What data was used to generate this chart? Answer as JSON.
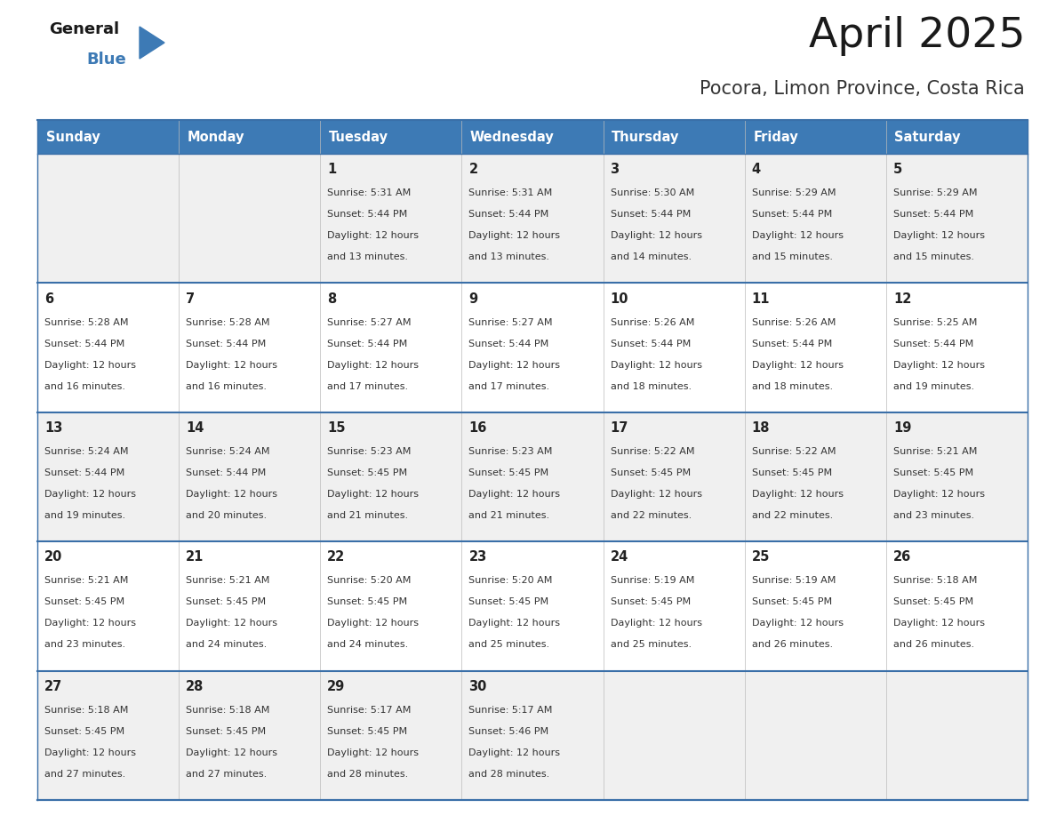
{
  "title": "April 2025",
  "subtitle": "Pocora, Limon Province, Costa Rica",
  "days_of_week": [
    "Sunday",
    "Monday",
    "Tuesday",
    "Wednesday",
    "Thursday",
    "Friday",
    "Saturday"
  ],
  "header_bg": "#3d7ab5",
  "header_text": "#ffffff",
  "row_bg_even": "#f0f0f0",
  "row_bg_odd": "#ffffff",
  "row_border": "#3a6fa8",
  "text_color": "#333333",
  "day_num_color": "#222222",
  "background": "#ffffff",
  "calendar_data": [
    [
      {
        "day": "",
        "sunrise": "",
        "sunset": "",
        "daylight": ""
      },
      {
        "day": "",
        "sunrise": "",
        "sunset": "",
        "daylight": ""
      },
      {
        "day": "1",
        "sunrise": "5:31 AM",
        "sunset": "5:44 PM",
        "daylight": "13 minutes."
      },
      {
        "day": "2",
        "sunrise": "5:31 AM",
        "sunset": "5:44 PM",
        "daylight": "13 minutes."
      },
      {
        "day": "3",
        "sunrise": "5:30 AM",
        "sunset": "5:44 PM",
        "daylight": "14 minutes."
      },
      {
        "day": "4",
        "sunrise": "5:29 AM",
        "sunset": "5:44 PM",
        "daylight": "15 minutes."
      },
      {
        "day": "5",
        "sunrise": "5:29 AM",
        "sunset": "5:44 PM",
        "daylight": "15 minutes."
      }
    ],
    [
      {
        "day": "6",
        "sunrise": "5:28 AM",
        "sunset": "5:44 PM",
        "daylight": "16 minutes."
      },
      {
        "day": "7",
        "sunrise": "5:28 AM",
        "sunset": "5:44 PM",
        "daylight": "16 minutes."
      },
      {
        "day": "8",
        "sunrise": "5:27 AM",
        "sunset": "5:44 PM",
        "daylight": "17 minutes."
      },
      {
        "day": "9",
        "sunrise": "5:27 AM",
        "sunset": "5:44 PM",
        "daylight": "17 minutes."
      },
      {
        "day": "10",
        "sunrise": "5:26 AM",
        "sunset": "5:44 PM",
        "daylight": "18 minutes."
      },
      {
        "day": "11",
        "sunrise": "5:26 AM",
        "sunset": "5:44 PM",
        "daylight": "18 minutes."
      },
      {
        "day": "12",
        "sunrise": "5:25 AM",
        "sunset": "5:44 PM",
        "daylight": "19 minutes."
      }
    ],
    [
      {
        "day": "13",
        "sunrise": "5:24 AM",
        "sunset": "5:44 PM",
        "daylight": "19 minutes."
      },
      {
        "day": "14",
        "sunrise": "5:24 AM",
        "sunset": "5:44 PM",
        "daylight": "20 minutes."
      },
      {
        "day": "15",
        "sunrise": "5:23 AM",
        "sunset": "5:45 PM",
        "daylight": "21 minutes."
      },
      {
        "day": "16",
        "sunrise": "5:23 AM",
        "sunset": "5:45 PM",
        "daylight": "21 minutes."
      },
      {
        "day": "17",
        "sunrise": "5:22 AM",
        "sunset": "5:45 PM",
        "daylight": "22 minutes."
      },
      {
        "day": "18",
        "sunrise": "5:22 AM",
        "sunset": "5:45 PM",
        "daylight": "22 minutes."
      },
      {
        "day": "19",
        "sunrise": "5:21 AM",
        "sunset": "5:45 PM",
        "daylight": "23 minutes."
      }
    ],
    [
      {
        "day": "20",
        "sunrise": "5:21 AM",
        "sunset": "5:45 PM",
        "daylight": "23 minutes."
      },
      {
        "day": "21",
        "sunrise": "5:21 AM",
        "sunset": "5:45 PM",
        "daylight": "24 minutes."
      },
      {
        "day": "22",
        "sunrise": "5:20 AM",
        "sunset": "5:45 PM",
        "daylight": "24 minutes."
      },
      {
        "day": "23",
        "sunrise": "5:20 AM",
        "sunset": "5:45 PM",
        "daylight": "25 minutes."
      },
      {
        "day": "24",
        "sunrise": "5:19 AM",
        "sunset": "5:45 PM",
        "daylight": "25 minutes."
      },
      {
        "day": "25",
        "sunrise": "5:19 AM",
        "sunset": "5:45 PM",
        "daylight": "26 minutes."
      },
      {
        "day": "26",
        "sunrise": "5:18 AM",
        "sunset": "5:45 PM",
        "daylight": "26 minutes."
      }
    ],
    [
      {
        "day": "27",
        "sunrise": "5:18 AM",
        "sunset": "5:45 PM",
        "daylight": "27 minutes."
      },
      {
        "day": "28",
        "sunrise": "5:18 AM",
        "sunset": "5:45 PM",
        "daylight": "27 minutes."
      },
      {
        "day": "29",
        "sunrise": "5:17 AM",
        "sunset": "5:45 PM",
        "daylight": "28 minutes."
      },
      {
        "day": "30",
        "sunrise": "5:17 AM",
        "sunset": "5:46 PM",
        "daylight": "28 minutes."
      },
      {
        "day": "",
        "sunrise": "",
        "sunset": "",
        "daylight": ""
      },
      {
        "day": "",
        "sunrise": "",
        "sunset": "",
        "daylight": ""
      },
      {
        "day": "",
        "sunrise": "",
        "sunset": "",
        "daylight": ""
      }
    ]
  ]
}
